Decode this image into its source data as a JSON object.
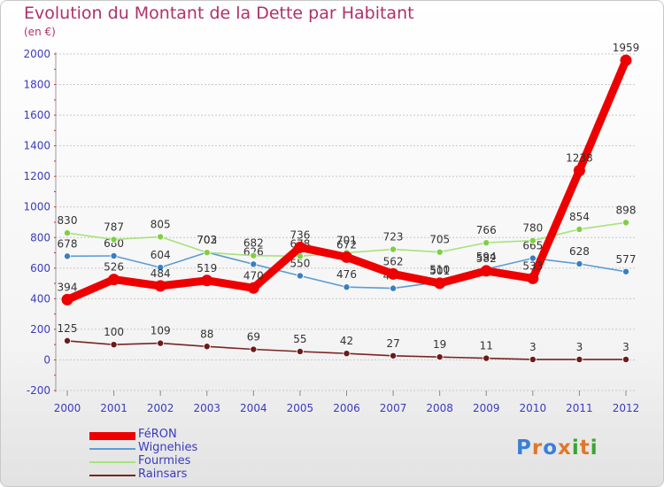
{
  "title": "Evolution du Montant de la Dette par Habitant",
  "subtitle": "(en €)",
  "logo_text": "Proxiti",
  "colors": {
    "title": "#b0306a",
    "axis_text": "#3b3bc0",
    "grid": "#c8c8c8",
    "logo_letters": [
      "#3a7fd8",
      "#e0782a",
      "#3a7fd8",
      "#e0782a",
      "#3aa52e",
      "#e0782a",
      "#3aa52e"
    ]
  },
  "chart_data": {
    "type": "line",
    "title": "Evolution du Montant de la Dette par Habitant",
    "subtitle": "(en €)",
    "xlabel": "",
    "ylabel": "",
    "x": [
      "2000",
      "2001",
      "2002",
      "2003",
      "2004",
      "2005",
      "2006",
      "2007",
      "2008",
      "2009",
      "2010",
      "2011",
      "2012"
    ],
    "yticks": [
      -200,
      0,
      200,
      400,
      600,
      800,
      1000,
      1200,
      1400,
      1600,
      1800,
      2000
    ],
    "ylim": [
      -200,
      2000
    ],
    "grid": "horizontal",
    "legend_position": "bottom-left",
    "series": [
      {
        "name": "FéRON",
        "color": "#ee0000",
        "marker": "#cc0000",
        "emphasis": true,
        "values": [
          394,
          526,
          484,
          519,
          470,
          736,
          672,
          562,
          501,
          582,
          533,
          1238,
          1959
        ]
      },
      {
        "name": "Wignehies",
        "color": "#5b9bd5",
        "marker": "#3a7ec0",
        "values": [
          678,
          680,
          604,
          703,
          626,
          550,
          476,
          468,
          510,
          594,
          665,
          628,
          577
        ]
      },
      {
        "name": "Fourmies",
        "color": "#a6e37a",
        "marker": "#7fcf42",
        "values": [
          830,
          787,
          805,
          702,
          682,
          678,
          701,
          723,
          705,
          766,
          780,
          854,
          898
        ]
      },
      {
        "name": "Rainsars",
        "color": "#7a2424",
        "marker": "#6b1b1b",
        "values": [
          125,
          100,
          109,
          88,
          69,
          55,
          42,
          27,
          19,
          11,
          3,
          3,
          3
        ]
      }
    ]
  }
}
